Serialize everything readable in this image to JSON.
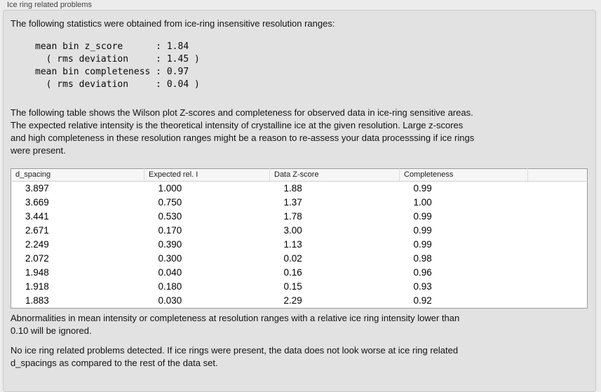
{
  "panel": {
    "title": "Ice ring related problems"
  },
  "intro": "The following statistics were obtained from ice-ring insensitive resolution ranges:",
  "stats_block": "mean bin z_score      : 1.84\n  ( rms deviation     : 1.45 )\nmean bin completeness : 0.97\n  ( rms deviation     : 0.04 )",
  "description": "The following table shows the Wilson plot Z-scores and completeness for observed data in ice-ring sensitive areas.\nThe expected relative intensity is the theoretical intensity of crystalline ice at the given resolution. Large z-scores\nand high completeness in these resolution ranges might be a reason to re-assess your data processsing if ice rings\nwere present.",
  "table": {
    "headers": [
      "d_spacing",
      "Expected rel. I",
      "Data Z-score",
      "Completeness",
      ""
    ],
    "rows": [
      [
        "3.897",
        "1.000",
        "1.88",
        "0.99"
      ],
      [
        "3.669",
        "0.750",
        "1.37",
        "1.00"
      ],
      [
        "3.441",
        "0.530",
        "1.78",
        "0.99"
      ],
      [
        "2.671",
        "0.170",
        "3.00",
        "0.99"
      ],
      [
        "2.249",
        "0.390",
        "1.13",
        "0.99"
      ],
      [
        "2.072",
        "0.300",
        "0.02",
        "0.98"
      ],
      [
        "1.948",
        "0.040",
        "0.16",
        "0.96"
      ],
      [
        "1.918",
        "0.180",
        "0.15",
        "0.93"
      ],
      [
        "1.883",
        "0.030",
        "2.29",
        "0.92"
      ]
    ]
  },
  "note_ignore": "Abnormalities in mean intensity or completeness at resolution ranges with a relative ice ring intensity lower than\n0.10 will be ignored.",
  "conclusion": "No ice ring related problems detected. If ice rings were present, the data does not look worse at ice ring related\nd_spacings as compared to the rest of the data set.",
  "colors": {
    "page_background": "#ececec",
    "panel_background": "#e2e2e2",
    "table_header_background": "#f6f6f6",
    "table_border": "#9b9b9b"
  }
}
